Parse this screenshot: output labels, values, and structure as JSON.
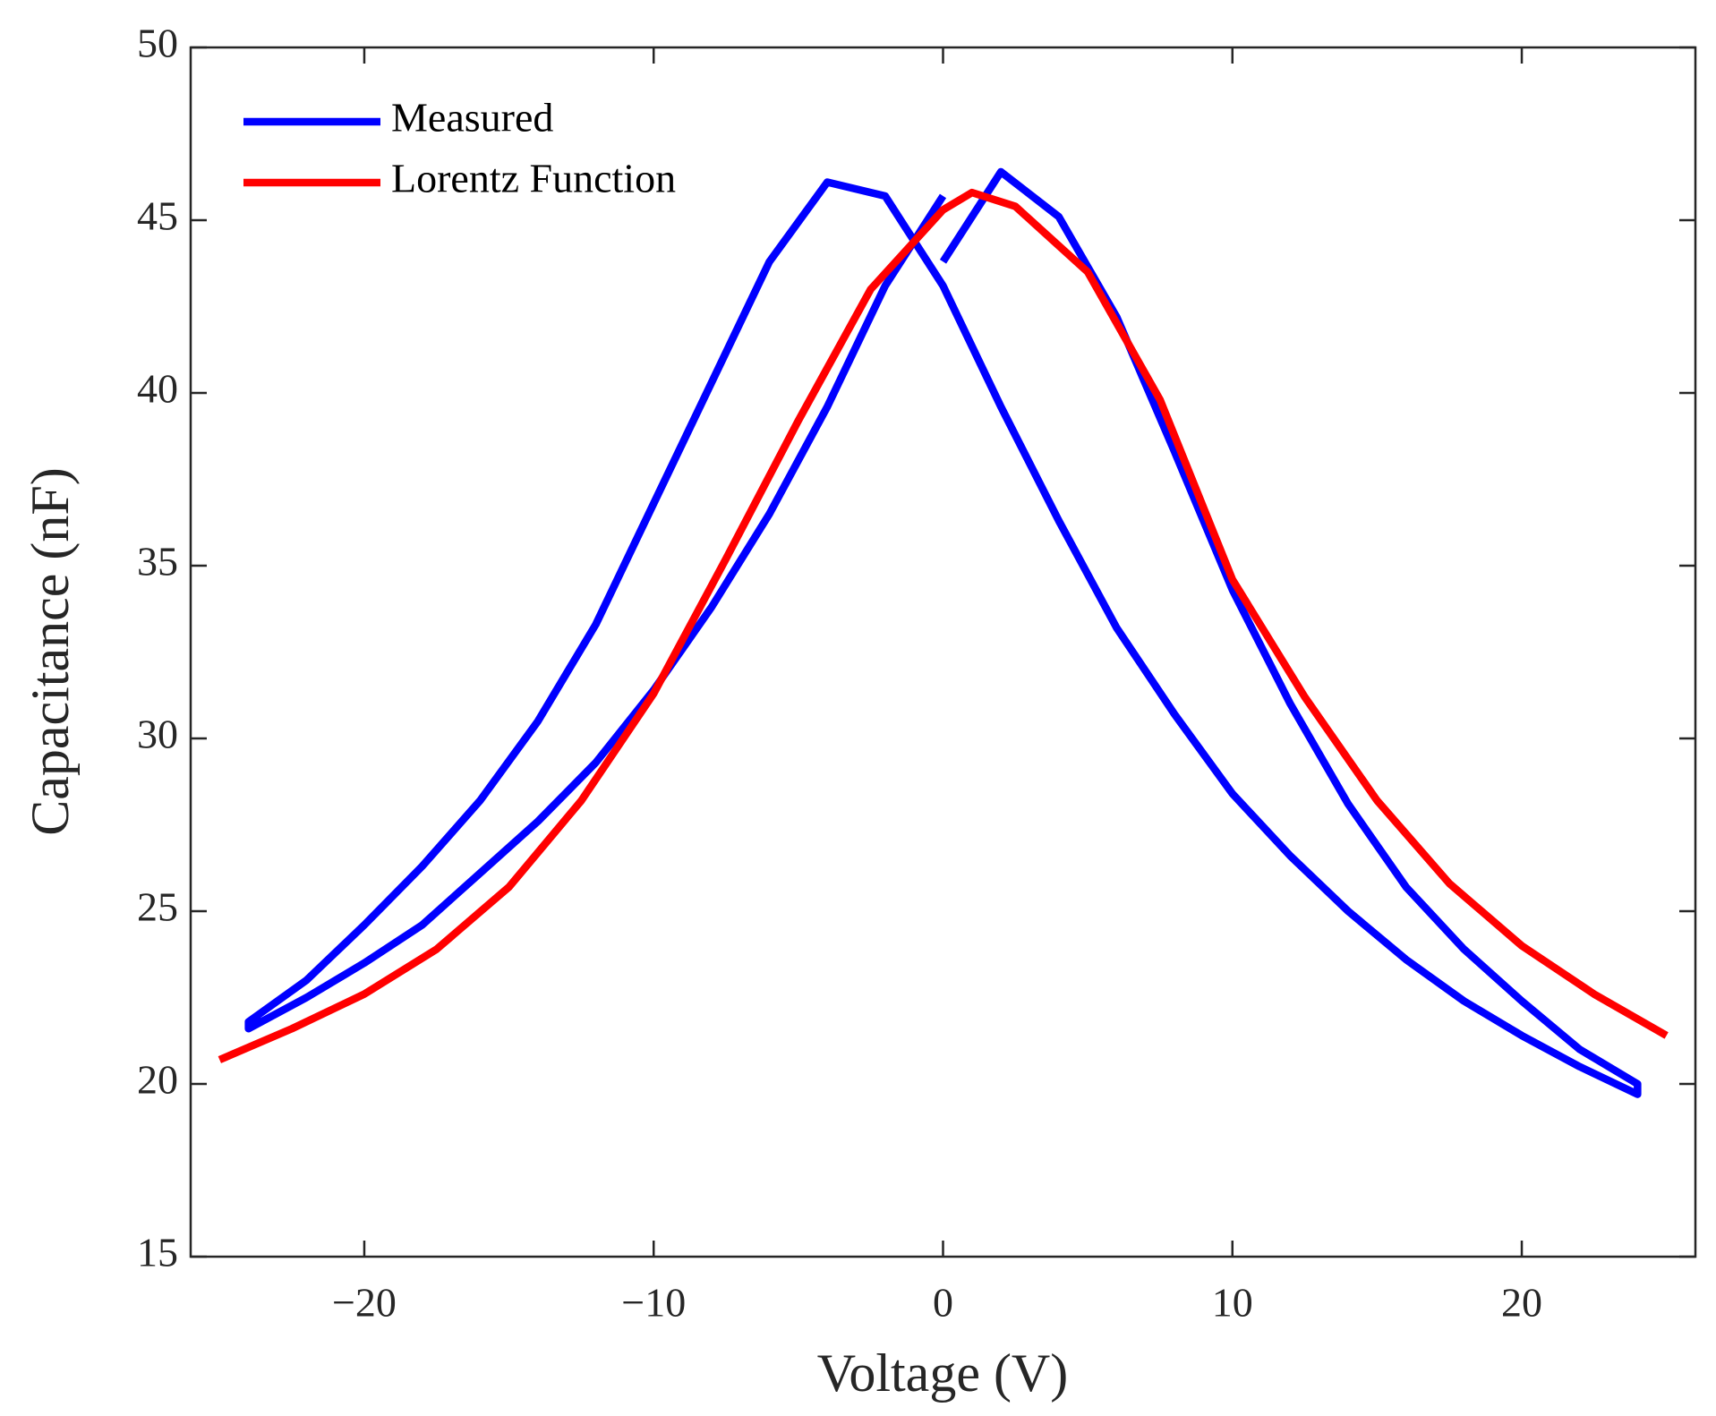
{
  "chart_data": {
    "type": "line",
    "xlabel": "Voltage (V)",
    "ylabel": "Capacitance (nF)",
    "xlim": [
      -26,
      26
    ],
    "ylim": [
      15,
      50
    ],
    "xticks": [
      {
        "value": -20,
        "label": "−20"
      },
      {
        "value": -10,
        "label": "−10"
      },
      0,
      10,
      20
    ],
    "yticks": [
      15,
      20,
      25,
      30,
      35,
      40,
      45,
      50
    ],
    "legend": "upper left",
    "grid": false,
    "series": [
      {
        "name": "Measured",
        "color": "#0000ff",
        "x": [
          0,
          2,
          4,
          6,
          8,
          10,
          12,
          14,
          16,
          18,
          20,
          22,
          24,
          24,
          22,
          20,
          18,
          16,
          14,
          12,
          10,
          8,
          6,
          4,
          2,
          0,
          -2,
          -4,
          -6,
          -8,
          -10,
          -12,
          -14,
          -16,
          -18,
          -20,
          -22,
          -24,
          -24,
          -22,
          -20,
          -18,
          -16,
          -14,
          -12,
          -10,
          -8,
          -6,
          -4,
          -2,
          0
        ],
        "values": [
          43.8,
          46.4,
          45.1,
          42.2,
          38.3,
          34.3,
          31.0,
          28.1,
          25.7,
          23.9,
          22.4,
          21.0,
          20.0,
          19.7,
          20.5,
          21.4,
          22.4,
          23.6,
          25.0,
          26.6,
          28.4,
          30.7,
          33.2,
          36.3,
          39.6,
          43.1,
          45.7,
          46.1,
          43.8,
          40.3,
          36.8,
          33.3,
          30.5,
          28.2,
          26.3,
          24.6,
          23.0,
          21.8,
          21.6,
          22.5,
          23.5,
          24.6,
          26.1,
          27.6,
          29.3,
          31.4,
          33.8,
          36.5,
          39.6,
          43.1,
          45.7
        ]
      },
      {
        "name": "Lorentz Function",
        "color": "#ff0000",
        "x": [
          -25,
          -22.5,
          -20,
          -17.5,
          -15,
          -12.5,
          -10,
          -7.5,
          -5,
          -2.5,
          0,
          1,
          2.5,
          5,
          7.5,
          10,
          12.5,
          15,
          17.5,
          20,
          22.5,
          25
        ],
        "values": [
          20.7,
          21.6,
          22.6,
          23.9,
          25.7,
          28.2,
          31.3,
          35.2,
          39.2,
          43.0,
          45.3,
          45.8,
          45.4,
          43.5,
          39.8,
          34.6,
          31.2,
          28.2,
          25.8,
          24.0,
          22.6,
          21.4
        ]
      }
    ]
  }
}
